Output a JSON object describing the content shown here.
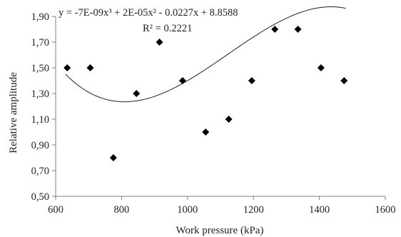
{
  "chart_data": {
    "type": "scatter",
    "xlabel": "Work pressure (kPa)",
    "ylabel": "Relative amplitude",
    "xlim": [
      600,
      1600
    ],
    "ylim": [
      0.5,
      1.9
    ],
    "x_ticks": [
      600,
      800,
      1000,
      1200,
      1400,
      1600
    ],
    "x_tick_labels": [
      "600",
      "800",
      "1000",
      "1200",
      "1400",
      "1600"
    ],
    "y_ticks": [
      0.5,
      0.7,
      0.9,
      1.1,
      1.3,
      1.5,
      1.7,
      1.9
    ],
    "y_tick_labels": [
      "0,50",
      "0,70",
      "0,90",
      "1,10",
      "1,30",
      "1,50",
      "1,70",
      "1,90"
    ],
    "grid": false,
    "series": [
      {
        "marker": "diamond",
        "color": "#000000",
        "points": [
          {
            "x": 635,
            "y": 1.5
          },
          {
            "x": 705,
            "y": 1.5
          },
          {
            "x": 775,
            "y": 0.8
          },
          {
            "x": 845,
            "y": 1.3
          },
          {
            "x": 915,
            "y": 1.7
          },
          {
            "x": 985,
            "y": 1.4
          },
          {
            "x": 1055,
            "y": 1.0
          },
          {
            "x": 1125,
            "y": 1.1
          },
          {
            "x": 1195,
            "y": 1.4
          },
          {
            "x": 1265,
            "y": 1.8
          },
          {
            "x": 1335,
            "y": 1.8
          },
          {
            "x": 1405,
            "y": 1.5
          },
          {
            "x": 1475,
            "y": 1.4
          }
        ]
      }
    ],
    "trendline": {
      "type": "polynomial",
      "order": 3,
      "color": "#222222",
      "x_range": [
        630,
        1480
      ],
      "equation": "y = -7E-09x³ + 2E-05x² - 0.0227x + 8.8588",
      "r_squared": "R² = 0.2221"
    }
  }
}
